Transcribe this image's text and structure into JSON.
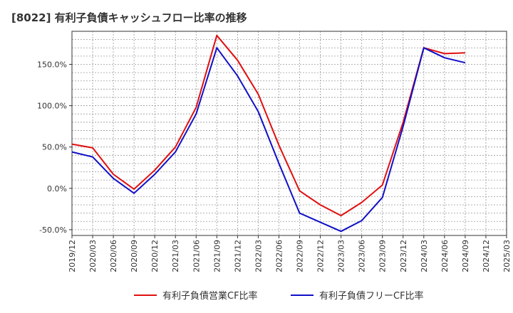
{
  "title": "[8022]  有利子負債キャッシュフロー比率の推移",
  "chart_data": {
    "type": "line",
    "title": "[8022]  有利子負債キャッシュフロー比率の推移",
    "xlabel": "",
    "ylabel": "",
    "x_range": [
      "2019/12",
      "2025/03"
    ],
    "ylim": [
      -57,
      190
    ],
    "y_ticks": [
      -50,
      0,
      50,
      100,
      150
    ],
    "y_tick_labels": [
      "-50.0%",
      "0.0%",
      "50.0%",
      "100.0%",
      "150.0%"
    ],
    "x_tick_labels": [
      "2019/12",
      "2020/03",
      "2020/06",
      "2020/09",
      "2020/12",
      "2021/03",
      "2021/06",
      "2021/09",
      "2021/12",
      "2022/03",
      "2022/06",
      "2022/09",
      "2022/12",
      "2023/03",
      "2023/06",
      "2023/09",
      "2023/12",
      "2024/03",
      "2024/06",
      "2024/09",
      "2024/12",
      "2025/03"
    ],
    "grid": true,
    "legend_position": "bottom",
    "series": [
      {
        "name": "有利子負債営業CF比率",
        "color": "#e01010",
        "x": [
          "2019/12",
          "2020/03",
          "2020/06",
          "2020/09",
          "2020/12",
          "2021/03",
          "2021/06",
          "2021/09",
          "2021/12",
          "2022/03",
          "2022/06",
          "2022/09",
          "2022/12",
          "2023/03",
          "2023/06",
          "2023/09",
          "2023/12",
          "2024/03",
          "2024/06",
          "2024/09"
        ],
        "values": [
          53.5,
          49,
          17,
          -1,
          22,
          50,
          98,
          185,
          155,
          114,
          52,
          -3,
          -20,
          -33,
          -17,
          4,
          80,
          170,
          163,
          164
        ]
      },
      {
        "name": "有利子負債フリーCF比率",
        "color": "#1010c8",
        "x": [
          "2019/12",
          "2020/03",
          "2020/06",
          "2020/09",
          "2020/12",
          "2021/03",
          "2021/06",
          "2021/09",
          "2021/12",
          "2022/03",
          "2022/06",
          "2022/09",
          "2022/12",
          "2023/03",
          "2023/06",
          "2023/09",
          "2023/12",
          "2024/03",
          "2024/06",
          "2024/09"
        ],
        "values": [
          44,
          38,
          12,
          -6,
          17,
          44,
          90,
          170,
          136,
          93,
          30,
          -30,
          -41,
          -52,
          -39,
          -11,
          75,
          170,
          158,
          152
        ]
      }
    ]
  }
}
